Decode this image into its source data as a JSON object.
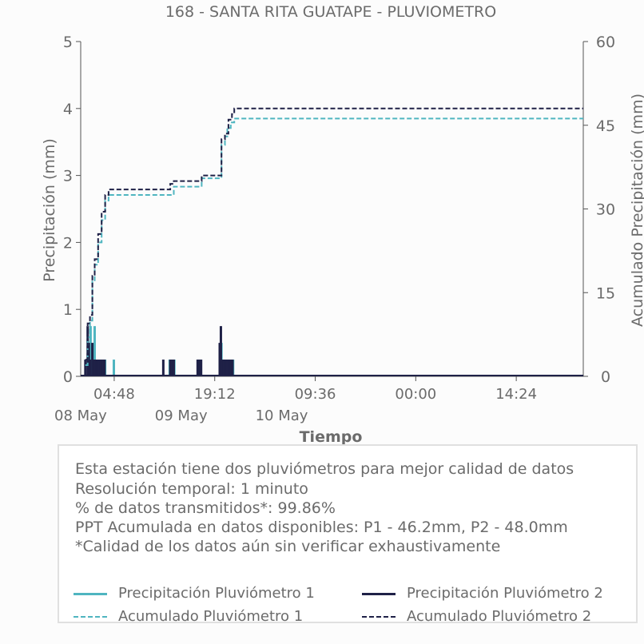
{
  "chart_data": {
    "type": "line",
    "title": "168 - SANTA RITA GUATAPE - PLUVIOMETRO",
    "xlabel": "Tiempo",
    "ylabel": "Precipitación (mm)",
    "y2label": "Acumulado Precipitación (mm)",
    "ylim": [
      0,
      5
    ],
    "y2lim": [
      0,
      60
    ],
    "yticks": [
      "0",
      "1",
      "2",
      "3",
      "4",
      "5"
    ],
    "y2ticks": [
      "0",
      "15",
      "30",
      "45",
      "60"
    ],
    "xlim": [
      "2024-05-08 00:00",
      "2024-05-11 00:00"
    ],
    "xticks": [
      {
        "t": "2024-05-08 04:48",
        "label": "04:48",
        "sub": "08 May"
      },
      {
        "t": "2024-05-08 19:12",
        "label": "19:12",
        "sub": "09 May"
      },
      {
        "t": "2024-05-09 09:36",
        "label": "09:36",
        "sub": "10 May"
      },
      {
        "t": "2024-05-10 00:00",
        "label": "00:00",
        "sub": ""
      },
      {
        "t": "2024-05-10 14:24",
        "label": "14:24",
        "sub": ""
      }
    ],
    "series": [
      {
        "name": "Precipitación Pluviómetro 1",
        "axis": "left",
        "style": "bars",
        "color": "#4fb5c0",
        "x": [
          "2024-05-08 01:05",
          "2024-05-08 01:15",
          "2024-05-08 01:25",
          "2024-05-08 01:35",
          "2024-05-08 01:45",
          "2024-05-08 02:00",
          "2024-05-08 02:10",
          "2024-05-08 02:20",
          "2024-05-08 02:35",
          "2024-05-08 02:50",
          "2024-05-08 03:05",
          "2024-05-08 03:15",
          "2024-05-08 03:30",
          "2024-05-08 04:45",
          "2024-05-08 12:45",
          "2024-05-08 13:10",
          "2024-05-08 13:25",
          "2024-05-08 16:50",
          "2024-05-08 17:10",
          "2024-05-08 20:00",
          "2024-05-08 20:10",
          "2024-05-08 20:20",
          "2024-05-08 20:35",
          "2024-05-08 20:50",
          "2024-05-08 21:05",
          "2024-05-08 21:20",
          "2024-05-08 21:35",
          "2024-05-08 21:50"
        ],
        "values": [
          0.25,
          0.5,
          0.75,
          0.5,
          0.25,
          0.75,
          0.25,
          0.25,
          0.25,
          0.25,
          0.25,
          0.25,
          0.25,
          0.25,
          0.25,
          0.25,
          0.25,
          0.25,
          0.25,
          0.25,
          0.5,
          0.25,
          0.25,
          0.25,
          0.25,
          0.25,
          0.25,
          0.25
        ]
      },
      {
        "name": "Precipitación Pluviómetro 2",
        "axis": "left",
        "style": "bars",
        "color": "#1f2147",
        "x": [
          "2024-05-08 00:40",
          "2024-05-08 01:00",
          "2024-05-08 01:10",
          "2024-05-08 01:20",
          "2024-05-08 01:40",
          "2024-05-08 01:55",
          "2024-05-08 02:05",
          "2024-05-08 02:15",
          "2024-05-08 02:25",
          "2024-05-08 02:40",
          "2024-05-08 02:55",
          "2024-05-08 03:10",
          "2024-05-08 03:25",
          "2024-05-08 11:50",
          "2024-05-08 12:50",
          "2024-05-08 13:05",
          "2024-05-08 13:20",
          "2024-05-08 16:45",
          "2024-05-08 17:00",
          "2024-05-08 17:15",
          "2024-05-08 19:55",
          "2024-05-08 20:05",
          "2024-05-08 20:15",
          "2024-05-08 20:30",
          "2024-05-08 20:45",
          "2024-05-08 21:00",
          "2024-05-08 21:15",
          "2024-05-08 21:30",
          "2024-05-08 21:45"
        ],
        "values": [
          0.25,
          0.75,
          0.5,
          0.25,
          0.5,
          0.25,
          0.25,
          0.25,
          0.25,
          0.25,
          0.25,
          0.25,
          0.25,
          0.25,
          0.25,
          0.25,
          0.25,
          0.25,
          0.25,
          0.25,
          0.5,
          0.75,
          0.25,
          0.25,
          0.25,
          0.25,
          0.25,
          0.25,
          0.25
        ]
      },
      {
        "name": "Acumulado Pluviómetro 1",
        "axis": "right",
        "style": "dashed",
        "color": "#4fb5c0",
        "x": [
          "2024-05-08 00:40",
          "2024-05-08 01:00",
          "2024-05-08 01:20",
          "2024-05-08 01:40",
          "2024-05-08 02:00",
          "2024-05-08 02:30",
          "2024-05-08 03:00",
          "2024-05-08 03:30",
          "2024-05-08 04:00",
          "2024-05-08 12:40",
          "2024-05-08 13:20",
          "2024-05-08 16:40",
          "2024-05-08 17:20",
          "2024-05-08 19:50",
          "2024-05-08 20:10",
          "2024-05-08 20:40",
          "2024-05-08 21:00",
          "2024-05-08 21:30",
          "2024-05-08 22:00",
          "2024-05-11 00:00"
        ],
        "values": [
          2.0,
          7.0,
          10.0,
          17.0,
          20.0,
          24.0,
          28.0,
          31.5,
          32.5,
          32.5,
          34.0,
          34.0,
          35.5,
          35.5,
          41.5,
          43.0,
          44.5,
          45.5,
          46.2,
          46.2
        ]
      },
      {
        "name": "Acumulado Pluviómetro 2",
        "axis": "right",
        "style": "dashed",
        "color": "#1f2147",
        "x": [
          "2024-05-08 00:40",
          "2024-05-08 01:00",
          "2024-05-08 01:20",
          "2024-05-08 01:40",
          "2024-05-08 02:00",
          "2024-05-08 02:30",
          "2024-05-08 03:00",
          "2024-05-08 03:30",
          "2024-05-08 04:00",
          "2024-05-08 11:50",
          "2024-05-08 12:50",
          "2024-05-08 13:20",
          "2024-05-08 16:40",
          "2024-05-08 17:20",
          "2024-05-08 19:50",
          "2024-05-08 20:10",
          "2024-05-08 20:40",
          "2024-05-08 21:10",
          "2024-05-08 21:40",
          "2024-05-08 22:00",
          "2024-05-11 00:00"
        ],
        "values": [
          3.0,
          9.5,
          11.0,
          18.0,
          21.0,
          25.5,
          29.5,
          32.5,
          33.5,
          33.5,
          34.5,
          35.0,
          35.0,
          36.0,
          36.0,
          42.5,
          43.5,
          46.0,
          47.0,
          48.0,
          48.0
        ]
      }
    ],
    "legend": "bottom-box",
    "grid": false
  },
  "notes": [
    "Esta estación tiene dos pluviómetros para mejor calidad de datos",
    "Resolución temporal: 1 minuto",
    "% de datos transmitidos*: 99.86%",
    "PPT Acumulada en datos disponibles: P1 - 46.2mm, P2 - 48.0mm",
    "*Calidad de los datos aún sin verificar exhaustivamente"
  ],
  "legend_items": [
    {
      "label": "Precipitación Pluviómetro 1",
      "color": "#4fb5c0",
      "dash": false
    },
    {
      "label": "Precipitación Pluviómetro 2",
      "color": "#1f2147",
      "dash": false
    },
    {
      "label": "Acumulado Pluviómetro 1",
      "color": "#4fb5c0",
      "dash": true
    },
    {
      "label": "Acumulado Pluviómetro 2",
      "color": "#1f2147",
      "dash": true
    }
  ]
}
